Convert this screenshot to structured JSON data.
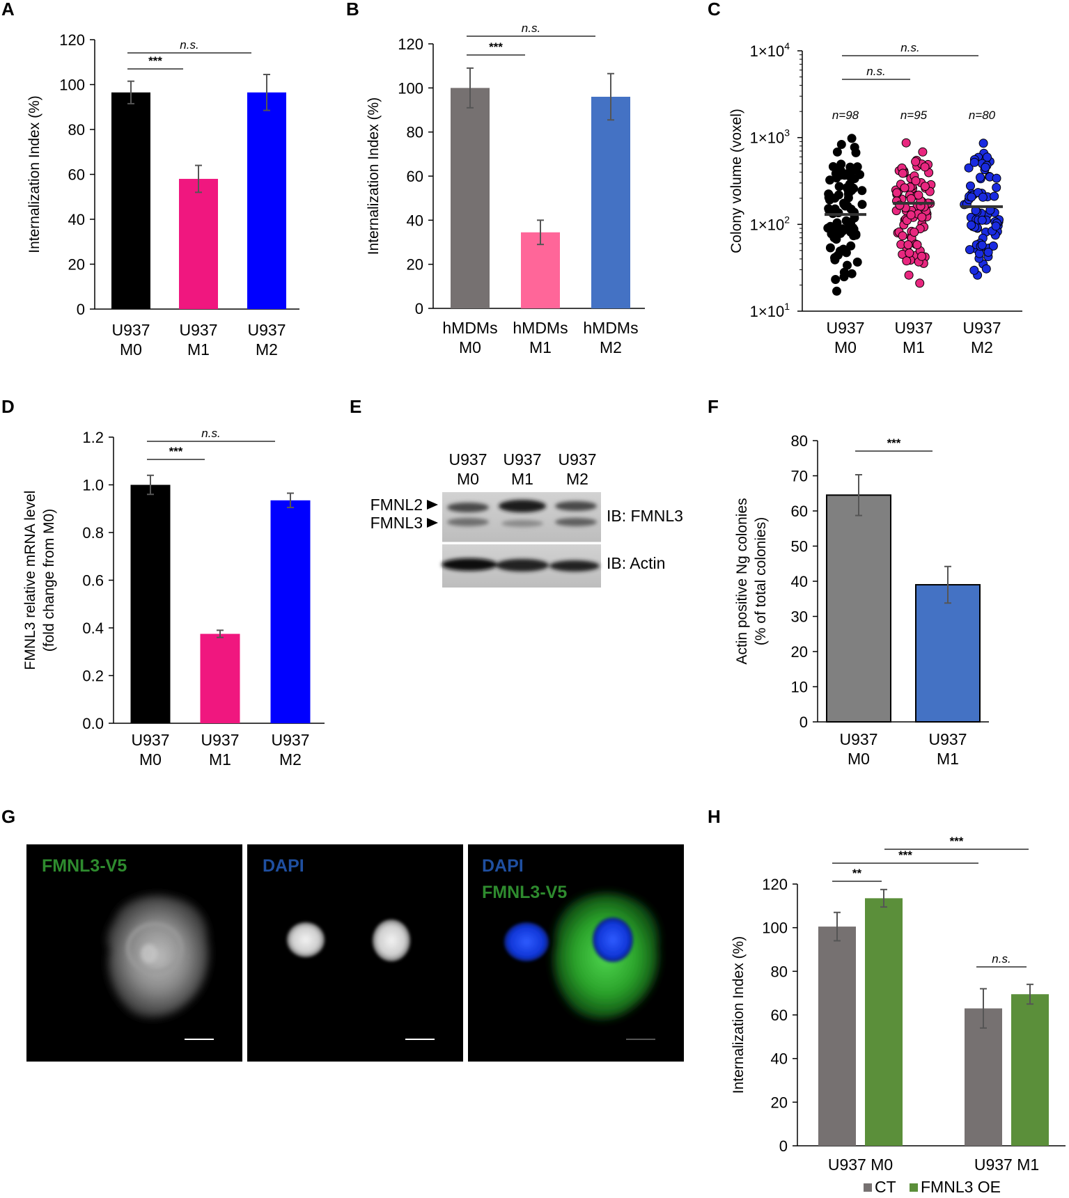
{
  "panel_labels": [
    "A",
    "B",
    "C",
    "D",
    "E",
    "F",
    "G",
    "H"
  ],
  "chart_data": [
    {
      "id": "A",
      "type": "bar",
      "ylabel": "Internalization Index (%)",
      "ylim": [
        0,
        120
      ],
      "yticks": [
        0,
        20,
        40,
        60,
        80,
        100,
        120
      ],
      "categories": [
        [
          "U937",
          "M0"
        ],
        [
          "U937",
          "M1"
        ],
        [
          "U937",
          "M2"
        ]
      ],
      "values": [
        96.5,
        58,
        96.5
      ],
      "errors": [
        5,
        6,
        8
      ],
      "colors": [
        "#000000",
        "#f0177f",
        "#0000ff"
      ],
      "significance": [
        {
          "from": 0,
          "to": 1,
          "label": "***"
        },
        {
          "from": 0,
          "to": 2,
          "label": "n.s."
        }
      ]
    },
    {
      "id": "B",
      "type": "bar",
      "ylabel": "Internalization Index (%)",
      "ylim": [
        0,
        120
      ],
      "yticks": [
        0,
        20,
        40,
        60,
        80,
        100,
        120
      ],
      "categories": [
        [
          "hMDMs",
          "M0"
        ],
        [
          "hMDMs",
          "M1"
        ],
        [
          "hMDMs",
          "M2"
        ]
      ],
      "values": [
        100,
        34.5,
        96
      ],
      "errors": [
        9,
        5.5,
        10.5
      ],
      "colors": [
        "#767171",
        "#ff6699",
        "#4472c4"
      ],
      "significance": [
        {
          "from": 0,
          "to": 1,
          "label": "***"
        },
        {
          "from": 0,
          "to": 2,
          "label": "n.s."
        }
      ]
    },
    {
      "id": "C",
      "type": "scatter",
      "ylabel": "Colony volume (voxel)",
      "yscale": "log",
      "ylim": [
        10,
        10000
      ],
      "yticks": [
        {
          "base": "1×10",
          "exp": "1"
        },
        {
          "base": "1×10",
          "exp": "2"
        },
        {
          "base": "1×10",
          "exp": "3"
        },
        {
          "base": "1×10",
          "exp": "4"
        }
      ],
      "categories": [
        [
          "U937",
          "M0"
        ],
        [
          "U937",
          "M1"
        ],
        [
          "U937",
          "M2"
        ]
      ],
      "n_labels": [
        "n=98",
        "n=95",
        "n=80"
      ],
      "counts": [
        98,
        95,
        80
      ],
      "medians": [
        130,
        175,
        160
      ],
      "colors": [
        "#000000",
        "#e8277f",
        "#1a2be0"
      ],
      "ranges": [
        [
          17,
          980
        ],
        [
          21,
          870
        ],
        [
          26,
          860
        ]
      ],
      "significance": [
        {
          "from": 0,
          "to": 1,
          "label": "n.s."
        },
        {
          "from": 0,
          "to": 2,
          "label": "n.s."
        }
      ]
    },
    {
      "id": "D",
      "type": "bar",
      "ylabel": [
        "FMNL3 relative mRNA level",
        "(fold change from M0)"
      ],
      "ylim": [
        0,
        1.2
      ],
      "yticks": [
        "0.0",
        "0.2",
        "0.4",
        "0.6",
        "0.8",
        "1.0",
        "1.2"
      ],
      "categories": [
        [
          "U937",
          "M0"
        ],
        [
          "U937",
          "M1"
        ],
        [
          "U937",
          "M2"
        ]
      ],
      "values": [
        1.0,
        0.375,
        0.935
      ],
      "errors": [
        0.04,
        0.015,
        0.03
      ],
      "colors": [
        "#000000",
        "#f0177f",
        "#0000ff"
      ],
      "significance": [
        {
          "from": 0,
          "to": 1,
          "label": "***"
        },
        {
          "from": 0,
          "to": 2,
          "label": "n.s."
        }
      ]
    },
    {
      "id": "F",
      "type": "bar",
      "ylabel": [
        "Actin positive Ng colonies",
        "(% of total colonies)"
      ],
      "ylim": [
        0,
        80
      ],
      "yticks": [
        0,
        10,
        20,
        30,
        40,
        50,
        60,
        70,
        80
      ],
      "categories": [
        [
          "U937",
          "M0"
        ],
        [
          "U937",
          "M1"
        ]
      ],
      "values": [
        64.5,
        39
      ],
      "errors": [
        5.8,
        5.2
      ],
      "colors": [
        "#808080",
        "#4472c4"
      ],
      "significance": [
        {
          "from": 0,
          "to": 1,
          "label": "***"
        }
      ]
    },
    {
      "id": "H",
      "type": "bar",
      "ylabel": "Internalization Index (%)",
      "ylim": [
        0,
        120
      ],
      "yticks": [
        0,
        20,
        40,
        60,
        80,
        100,
        120
      ],
      "groups": [
        "U937 M0",
        "U937 M1"
      ],
      "series": [
        {
          "name": "CT",
          "color": "#767171",
          "values": [
            100.5,
            63
          ],
          "errors": [
            6.5,
            9
          ]
        },
        {
          "name": "FMNL3 OE",
          "color": "#5b8f3a",
          "values": [
            113.5,
            69.5
          ],
          "errors": [
            4,
            4.5
          ]
        }
      ],
      "legend": "bottom",
      "significance": [
        {
          "label": "**"
        },
        {
          "label": "***"
        },
        {
          "label": "***"
        },
        {
          "label": "n.s."
        }
      ]
    }
  ],
  "blot": {
    "lanes": [
      [
        "U937",
        "M0"
      ],
      [
        "U937",
        "M1"
      ],
      [
        "U937",
        "M2"
      ]
    ],
    "band_labels": [
      "FMNL2",
      "FMNL3"
    ],
    "ib_labels": [
      "IB: FMNL3",
      "IB: Actin"
    ]
  },
  "microscopy": {
    "panels": [
      {
        "labels": [
          "FMNL3-V5"
        ],
        "colors": [
          "#2e8b2e"
        ]
      },
      {
        "labels": [
          "DAPI"
        ],
        "colors": [
          "#1f4fa0"
        ]
      },
      {
        "labels": [
          "DAPI",
          "FMNL3-V5"
        ],
        "colors": [
          "#1f4fa0",
          "#2e8b2e"
        ]
      }
    ]
  }
}
